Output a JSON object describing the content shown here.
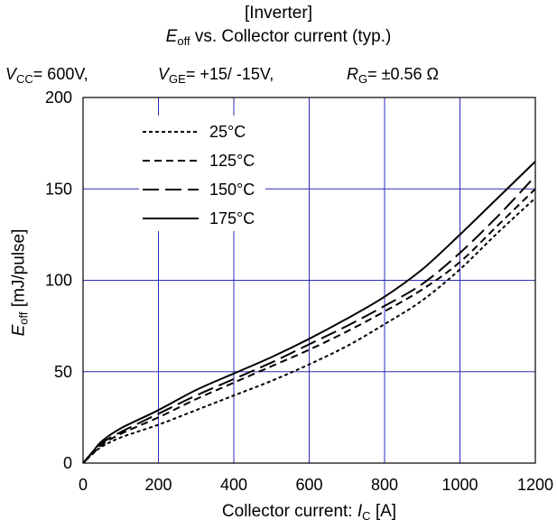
{
  "header": {
    "line1": "[Inverter]",
    "line2_symbol": "E",
    "line2_sub": "off",
    "line2_rest": " vs. Collector current  (typ.)"
  },
  "conditions": {
    "vcc_symbol": "V",
    "vcc_sub": "CC",
    "vcc_value": "= 600V,",
    "vge_symbol": "V",
    "vge_sub": "GE",
    "vge_value": "= +15/ -15V,",
    "rg_symbol": "R",
    "rg_sub": "G",
    "rg_value": "=  ±0.56 Ω"
  },
  "axes": {
    "y_symbol": "E",
    "y_sub": "off",
    "y_rest": " [mJ/pulse]",
    "x_text": "Collector current: ",
    "x_symbol": "I",
    "x_sub": "C",
    "x_unit": " [A]"
  },
  "colors": {
    "grid": "#2b2bb8",
    "curve": "#000000"
  },
  "chart_data": {
    "type": "line",
    "xlim": [
      0,
      1200
    ],
    "ylim": [
      0,
      200
    ],
    "x_ticks": [
      "0",
      "200",
      "400",
      "600",
      "800",
      "1000",
      "1200"
    ],
    "y_ticks": [
      "0",
      "50",
      "100",
      "150",
      "200"
    ],
    "grid": true,
    "legend_position": "top-left",
    "series": [
      {
        "name": "25°C",
        "dash": "fine",
        "x": [
          0,
          25,
          50,
          100,
          200,
          300,
          400,
          500,
          600,
          700,
          800,
          900,
          1000,
          1100,
          1200
        ],
        "y": [
          0,
          5,
          9,
          14,
          21,
          29,
          37,
          45,
          54,
          64,
          76,
          89,
          106,
          126,
          145
        ]
      },
      {
        "name": "125°C",
        "dash": "medium",
        "x": [
          0,
          25,
          50,
          100,
          200,
          300,
          400,
          500,
          600,
          700,
          800,
          900,
          1000,
          1100,
          1200
        ],
        "y": [
          0,
          5,
          10,
          16,
          25,
          35,
          44,
          53,
          62,
          72,
          83,
          95,
          110,
          130,
          150
        ]
      },
      {
        "name": "150°C",
        "dash": "long",
        "x": [
          0,
          25,
          50,
          100,
          200,
          300,
          400,
          500,
          600,
          700,
          800,
          900,
          1000,
          1100,
          1200
        ],
        "y": [
          0,
          6,
          11,
          17,
          27,
          37,
          46,
          55,
          65,
          75,
          86,
          98,
          115,
          135,
          157
        ]
      },
      {
        "name": "175°C",
        "dash": "solid",
        "x": [
          0,
          25,
          50,
          100,
          200,
          300,
          400,
          500,
          600,
          700,
          800,
          900,
          1000,
          1100,
          1200
        ],
        "y": [
          0,
          6,
          12,
          19,
          29,
          40,
          49,
          58,
          68,
          79,
          91,
          106,
          125,
          145,
          165
        ]
      }
    ]
  }
}
